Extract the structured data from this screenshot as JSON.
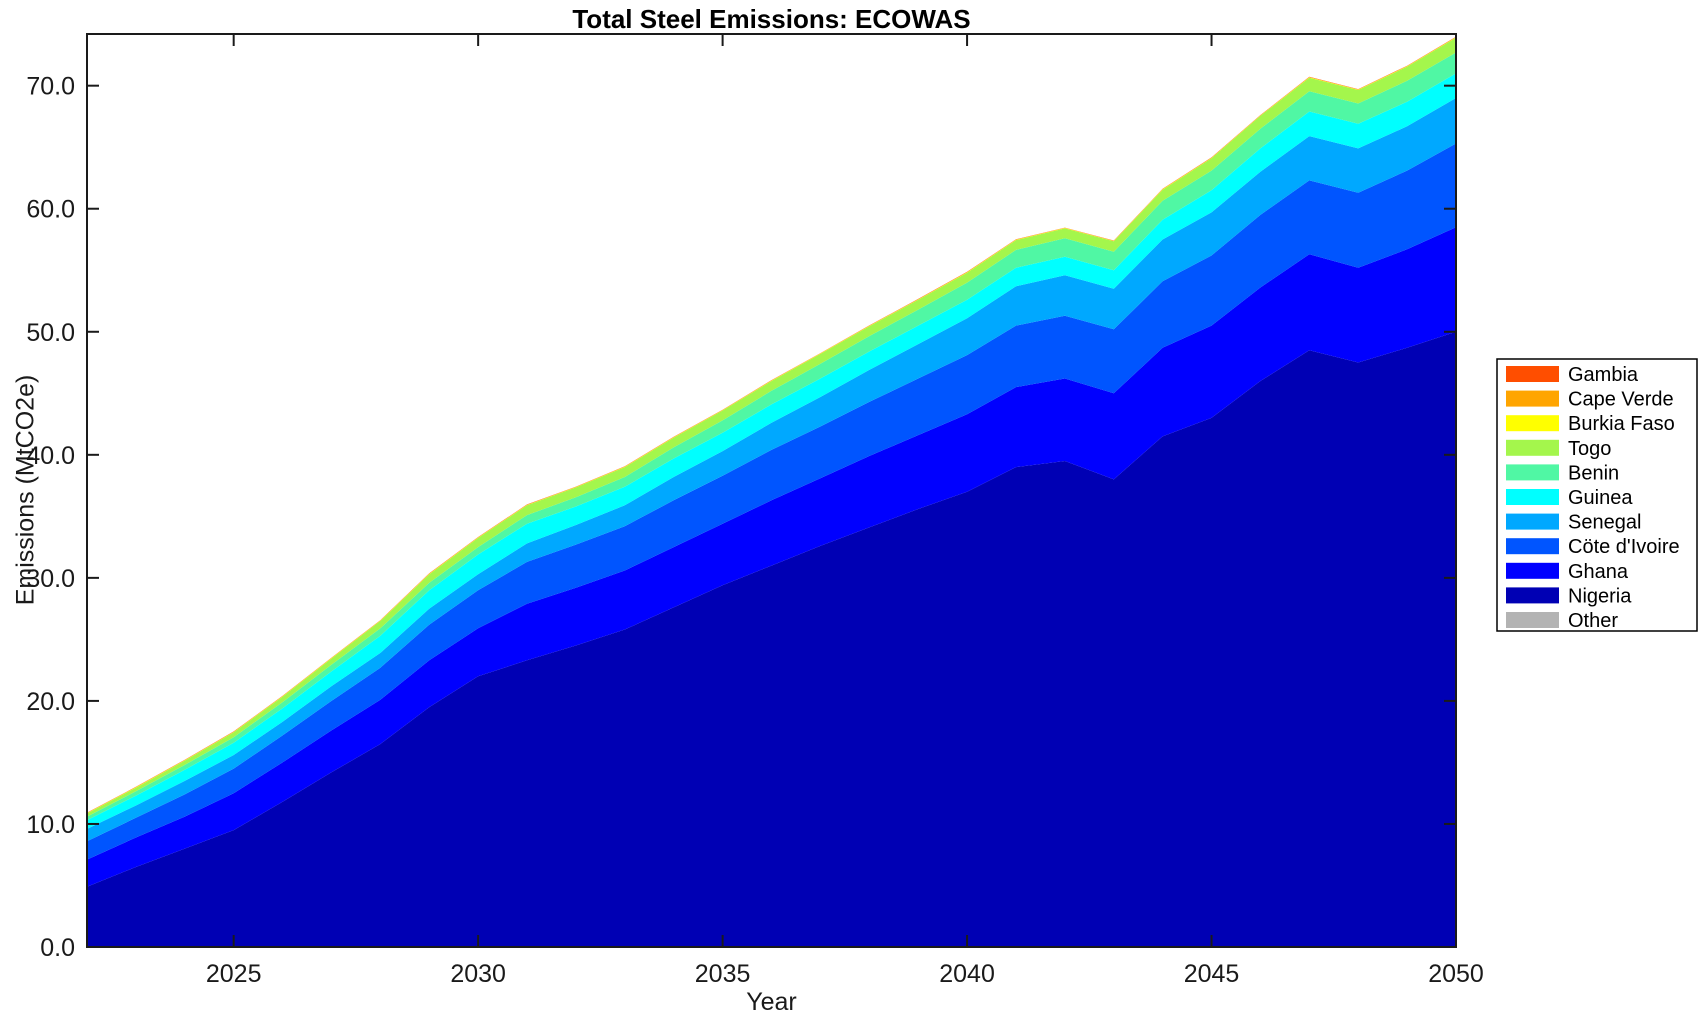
{
  "chart_data": {
    "type": "area",
    "variant": "stacked",
    "title": "Total Steel Emissions: ECOWAS",
    "xlabel": "Year",
    "ylabel": "Emissions (MtCO2e)",
    "xlim": [
      2022,
      2050
    ],
    "ylim": [
      0,
      74.2
    ],
    "x_ticks": [
      2025,
      2030,
      2035,
      2040,
      2045,
      2050
    ],
    "y_ticks": [
      0,
      10,
      20,
      30,
      40,
      50,
      60,
      70
    ],
    "y_tick_labels": [
      "0.0",
      "10.0",
      "20.0",
      "30.0",
      "40.0",
      "50.0",
      "60.0",
      "70.0"
    ],
    "grid": false,
    "legend_position": "outside-right",
    "axis_color": "#1a1a1a",
    "background": "#ffffff",
    "x": [
      2022,
      2023,
      2024,
      2025,
      2026,
      2027,
      2028,
      2029,
      2030,
      2031,
      2032,
      2033,
      2034,
      2035,
      2036,
      2037,
      2038,
      2039,
      2040,
      2041,
      2042,
      2043,
      2044,
      2045,
      2046,
      2047,
      2048,
      2049,
      2050
    ],
    "series": [
      {
        "name": "Nigeria",
        "color": "#0000b4",
        "values": [
          4.9,
          6.5,
          8.0,
          9.5,
          11.8,
          14.2,
          16.5,
          19.5,
          22.0,
          23.3,
          24.5,
          25.8,
          27.6,
          29.4,
          31.0,
          32.6,
          34.1,
          35.6,
          37.0,
          39.0,
          39.5,
          38.0,
          41.5,
          43.0,
          46.0,
          48.5,
          47.5,
          48.7,
          50.0
        ]
      },
      {
        "name": "Ghana",
        "color": "#0000ff",
        "values": [
          2.2,
          2.4,
          2.6,
          3.0,
          3.2,
          3.4,
          3.6,
          3.8,
          3.9,
          4.6,
          4.7,
          4.8,
          4.9,
          5.0,
          5.3,
          5.5,
          5.8,
          6.0,
          6.3,
          6.5,
          6.7,
          7.0,
          7.2,
          7.5,
          7.6,
          7.8,
          7.7,
          8.0,
          8.5
        ]
      },
      {
        "name": "Cöte d'Ivoire",
        "color": "#0055ff",
        "values": [
          1.5,
          1.6,
          1.8,
          2.0,
          2.2,
          2.4,
          2.6,
          2.9,
          3.1,
          3.4,
          3.5,
          3.6,
          3.8,
          3.9,
          4.1,
          4.2,
          4.4,
          4.6,
          4.8,
          5.0,
          5.1,
          5.2,
          5.4,
          5.7,
          5.9,
          6.0,
          6.1,
          6.4,
          6.8
        ]
      },
      {
        "name": "Senegal",
        "color": "#00a8ff",
        "values": [
          1.0,
          1.0,
          1.1,
          1.1,
          1.1,
          1.2,
          1.2,
          1.3,
          1.3,
          1.5,
          1.6,
          1.7,
          1.9,
          2.0,
          2.2,
          2.4,
          2.6,
          2.8,
          3.0,
          3.2,
          3.3,
          3.3,
          3.4,
          3.5,
          3.5,
          3.6,
          3.6,
          3.6,
          3.7
        ]
      },
      {
        "name": "Guinea",
        "color": "#00ffff",
        "values": [
          0.7,
          0.8,
          0.9,
          1.0,
          1.1,
          1.2,
          1.4,
          1.5,
          1.6,
          1.6,
          1.5,
          1.5,
          1.5,
          1.5,
          1.5,
          1.5,
          1.5,
          1.5,
          1.5,
          1.5,
          1.5,
          1.5,
          1.6,
          1.8,
          1.9,
          2.0,
          2.0,
          2.0,
          2.0
        ]
      },
      {
        "name": "Benin",
        "color": "#50f7a4",
        "values": [
          0.3,
          0.35,
          0.4,
          0.45,
          0.5,
          0.55,
          0.6,
          0.6,
          0.6,
          0.7,
          0.75,
          0.8,
          0.9,
          1.0,
          1.1,
          1.2,
          1.25,
          1.3,
          1.4,
          1.45,
          1.5,
          1.5,
          1.55,
          1.6,
          1.6,
          1.65,
          1.65,
          1.7,
          1.7
        ]
      },
      {
        "name": "Togo",
        "color": "#a4f64c",
        "values": [
          0.25,
          0.3,
          0.35,
          0.4,
          0.45,
          0.5,
          0.6,
          0.7,
          0.75,
          0.8,
          0.8,
          0.8,
          0.8,
          0.8,
          0.8,
          0.8,
          0.8,
          0.8,
          0.8,
          0.8,
          0.8,
          0.85,
          0.9,
          1.0,
          1.05,
          1.1,
          1.1,
          1.15,
          1.2
        ]
      },
      {
        "name": "Burkia Faso",
        "color": "#ffff00",
        "values": [
          0.03,
          0.03,
          0.03,
          0.03,
          0.03,
          0.03,
          0.03,
          0.03,
          0.03,
          0.03,
          0.03,
          0.03,
          0.03,
          0.03,
          0.03,
          0.03,
          0.03,
          0.03,
          0.03,
          0.03,
          0.03,
          0.03,
          0.03,
          0.03,
          0.03,
          0.03,
          0.03,
          0.03,
          0.03
        ]
      },
      {
        "name": "Cape Verde",
        "color": "#ffa500",
        "values": [
          0.02,
          0.02,
          0.02,
          0.02,
          0.02,
          0.02,
          0.02,
          0.02,
          0.02,
          0.02,
          0.02,
          0.02,
          0.02,
          0.02,
          0.02,
          0.02,
          0.02,
          0.02,
          0.02,
          0.02,
          0.02,
          0.02,
          0.02,
          0.02,
          0.02,
          0.02,
          0.02,
          0.02,
          0.02
        ]
      },
      {
        "name": "Gambia",
        "color": "#ff4e00",
        "values": [
          0.02,
          0.02,
          0.02,
          0.02,
          0.02,
          0.02,
          0.02,
          0.02,
          0.02,
          0.02,
          0.02,
          0.02,
          0.02,
          0.02,
          0.02,
          0.02,
          0.02,
          0.02,
          0.02,
          0.02,
          0.02,
          0.02,
          0.02,
          0.02,
          0.02,
          0.02,
          0.02,
          0.02,
          0.02
        ]
      },
      {
        "name": "Other",
        "color": "#b3b3b3",
        "values": [
          0,
          0,
          0,
          0,
          0,
          0,
          0,
          0,
          0,
          0,
          0,
          0,
          0,
          0,
          0,
          0,
          0,
          0,
          0,
          0,
          0,
          0,
          0,
          0,
          0,
          0,
          0,
          0,
          0
        ]
      }
    ],
    "legend_order": [
      "Gambia",
      "Cape Verde",
      "Burkia Faso",
      "Togo",
      "Benin",
      "Guinea",
      "Senegal",
      "Cöte d'Ivoire",
      "Ghana",
      "Nigeria",
      "Other"
    ],
    "legend_border_color": "#000000",
    "legend_background": "#ffffff"
  }
}
